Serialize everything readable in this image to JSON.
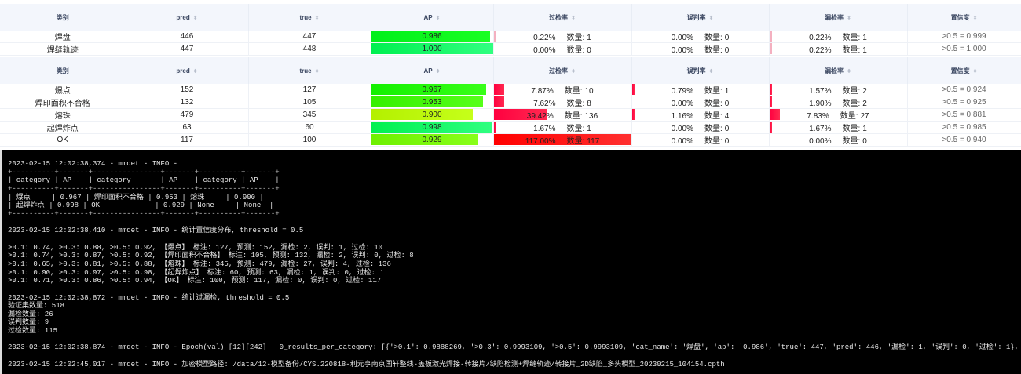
{
  "columns": [
    "类别",
    "pred",
    "true",
    "AP",
    "过检率",
    "误判率",
    "漏检率",
    "置信度"
  ],
  "count_label": "数量:",
  "table1": [
    {
      "cat": "焊盘",
      "pred": 446,
      "true": 447,
      "ap": "0.986",
      "over": "0.22%",
      "over_n": 1,
      "over_v": 0.22,
      "mis": "0.00%",
      "mis_n": 0,
      "mis_v": 0,
      "miss": "0.22%",
      "miss_n": 1,
      "miss_v": 0.22,
      "conf": ">0.5 = 0.999"
    },
    {
      "cat": "焊缝轨迹",
      "pred": 447,
      "true": 448,
      "ap": "1.000",
      "over": "0.00%",
      "over_n": 0,
      "over_v": 0,
      "mis": "0.00%",
      "mis_n": 0,
      "mis_v": 0,
      "miss": "0.22%",
      "miss_n": 1,
      "miss_v": 0.22,
      "conf": ">0.5 = 1.000"
    }
  ],
  "table2": [
    {
      "cat": "爆点",
      "pred": 152,
      "true": 127,
      "ap": "0.967",
      "over": "7.87%",
      "over_n": 10,
      "over_v": 7.87,
      "mis": "0.79%",
      "mis_n": 1,
      "mis_v": 0.79,
      "miss": "1.57%",
      "miss_n": 2,
      "miss_v": 1.57,
      "conf": ">0.5 = 0.924"
    },
    {
      "cat": "焊印面积不合格",
      "pred": 132,
      "true": 105,
      "ap": "0.953",
      "over": "7.62%",
      "over_n": 8,
      "over_v": 7.62,
      "mis": "0.00%",
      "mis_n": 0,
      "mis_v": 0,
      "miss": "1.90%",
      "miss_n": 2,
      "miss_v": 1.9,
      "conf": ">0.5 = 0.925"
    },
    {
      "cat": "熔珠",
      "pred": 479,
      "true": 345,
      "ap": "0.900",
      "over": "39.42%",
      "over_n": 136,
      "over_v": 39.42,
      "mis": "1.16%",
      "mis_n": 4,
      "mis_v": 1.16,
      "miss": "7.83%",
      "miss_n": 27,
      "miss_v": 7.83,
      "conf": ">0.5 = 0.881"
    },
    {
      "cat": "起焊炸点",
      "pred": 63,
      "true": 60,
      "ap": "0.998",
      "over": "1.67%",
      "over_n": 1,
      "over_v": 1.67,
      "mis": "0.00%",
      "mis_n": 0,
      "mis_v": 0,
      "miss": "1.67%",
      "miss_n": 1,
      "miss_v": 1.67,
      "conf": ">0.5 = 0.985"
    },
    {
      "cat": "OK",
      "pred": 117,
      "true": 100,
      "ap": "0.929",
      "over": "117.00%",
      "over_n": 117,
      "over_v": 117,
      "mis": "0.00%",
      "mis_n": 0,
      "mis_v": 0,
      "miss": "0.00%",
      "miss_n": 0,
      "miss_v": 0,
      "conf": ">0.5 = 0.940"
    }
  ],
  "terminal": [
    "2023-02-15 12:02:38,374 - mmdet - INFO - ",
    "+----------+-------+----------------+-------+----------+-------+",
    "| category | AP    | category       | AP    | category | AP    |",
    "+----------+-------+----------------+-------+----------+-------+",
    "| 爆点     | 0.967 | 焊印面积不合格 | 0.953 | 熔珠     | 0.900 |",
    "| 起焊炸点 | 0.998 | OK             | 0.929 | None     | None  |",
    "+----------+-------+----------------+-------+----------+-------+",
    "",
    "2023-02-15 12:02:38,410 - mmdet - INFO - 统计置信度分布, threshold = 0.5",
    "",
    ">0.1: 0.74, >0.3: 0.88, >0.5: 0.92, 【爆点】 标注: 127, 预测: 152, 漏检: 2, 误判: 1, 过检: 10",
    ">0.1: 0.74, >0.3: 0.87, >0.5: 0.92, 【焊印面积不合格】 标注: 105, 预测: 132, 漏检: 2, 误判: 0, 过检: 8",
    ">0.1: 0.65, >0.3: 0.81, >0.5: 0.88, 【熔珠】 标注: 345, 预测: 479, 漏检: 27, 误判: 4, 过检: 136",
    ">0.1: 0.90, >0.3: 0.97, >0.5: 0.98, 【起焊炸点】 标注: 60, 预测: 63, 漏检: 1, 误判: 0, 过检: 1",
    ">0.1: 0.71, >0.3: 0.86, >0.5: 0.94, 【OK】 标注: 100, 预测: 117, 漏检: 0, 误判: 0, 过检: 117",
    "",
    "2023-02-15 12:02:38,872 - mmdet - INFO - 统计过漏检, threshold = 0.5",
    "验证集数量: 518",
    "漏检数量: 26",
    "误判数量: 9",
    "过检数量: 115",
    "",
    "2023-02-15 12:02:38,874 - mmdet - INFO - Epoch(val) [12][242]   0_results_per_category: [{'>0.1': 0.9888269, '>0.3': 0.9993109, '>0.5': 0.9993109, 'cat_name': '焊盘', 'ap': '0.986', 'true': 447, 'pred': 446, '漏检': 1, '误判': 0, '过检': 1}, {'>0.1': 0.99998033, '>0.3': 0.9",
    "",
    "2023-02-15 12:02:45,017 - mmdet - INFO - 加密模型路径: /data/12-模型备份/CYS.220818-利元亨南京国轩整线-盖板激光焊接-转接片/缺陷检测+焊缝轨迹/转接片_2D缺陷_多头模型_20230215_104154.cpth"
  ],
  "colors": {
    "ap_high": "#00ff40",
    "ap_low": "#b0ff10",
    "over_bar": "#ff0040",
    "terminal_bg": "#000000",
    "header_bg": "#f3f6fc"
  }
}
